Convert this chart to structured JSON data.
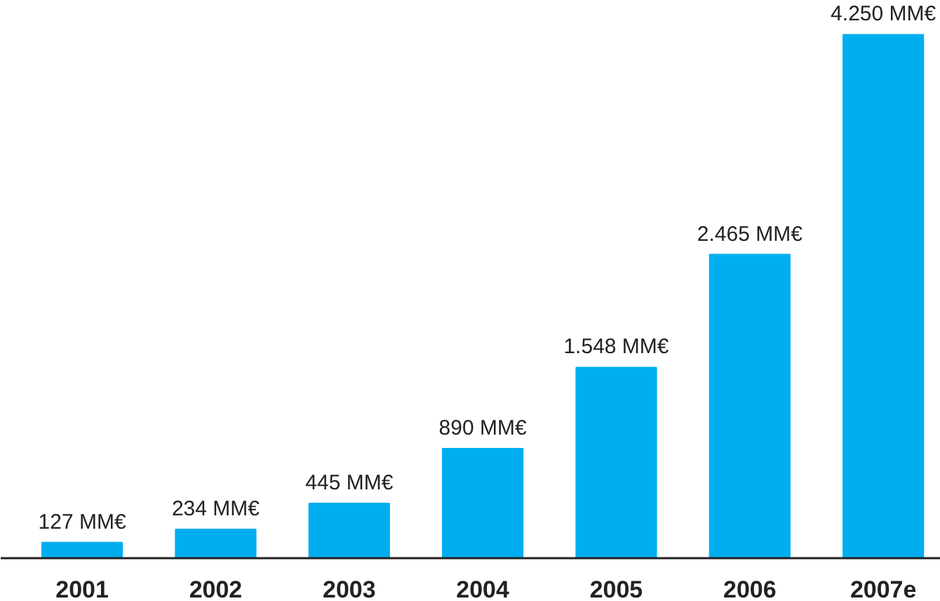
{
  "chart_data": {
    "type": "bar",
    "categories": [
      "2001",
      "2002",
      "2003",
      "2004",
      "2005",
      "2006",
      "2007e"
    ],
    "values": [
      127,
      234,
      445,
      890,
      1548,
      2465,
      4250
    ],
    "value_labels": [
      "127 MM€",
      "234 MM€",
      "445 MM€",
      "890 MM€",
      "1.548 MM€",
      "2.465 MM€",
      "4.250 MM€"
    ],
    "color": "#00aeef",
    "grid": false
  }
}
